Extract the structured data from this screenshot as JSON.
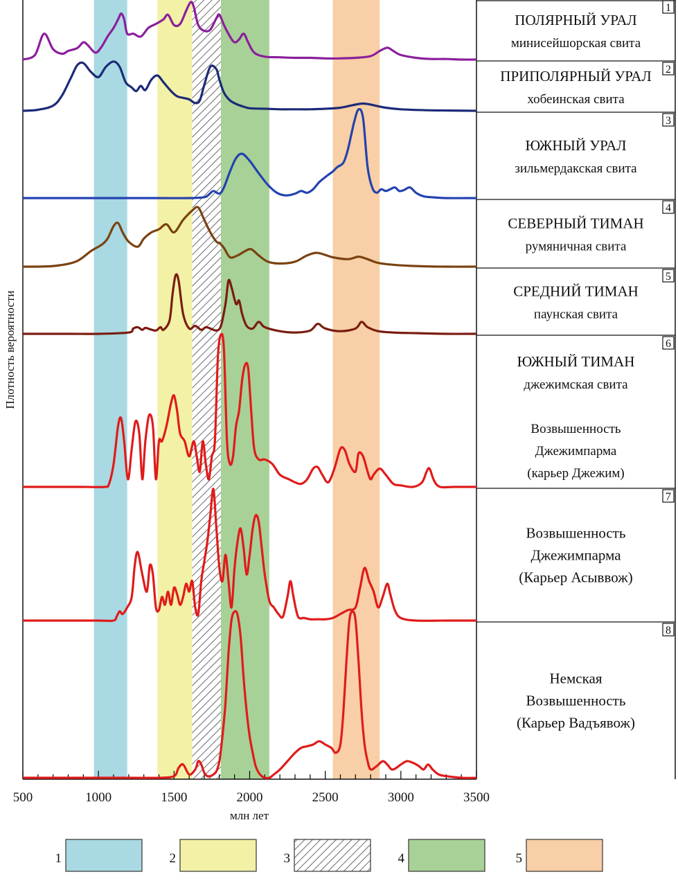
{
  "chart_data": {
    "type": "line",
    "title": "",
    "xlabel": "млн лет",
    "ylabel": "Плотность вероятности",
    "xlim": [
      500,
      3500
    ],
    "x_ticks": [
      500,
      1000,
      1500,
      2000,
      2500,
      3000,
      3500
    ],
    "bands": [
      {
        "id": "1",
        "from": 970,
        "to": 1190,
        "color": "#a9d9e2",
        "pattern": "solid"
      },
      {
        "id": "2",
        "from": 1390,
        "to": 1620,
        "color": "#f3f1a6",
        "pattern": "solid"
      },
      {
        "id": "3",
        "from": 1620,
        "to": 1810,
        "color": "#ffffff",
        "pattern": "hatched"
      },
      {
        "id": "4",
        "from": 1810,
        "to": 2130,
        "color": "#a8d197",
        "pattern": "solid"
      },
      {
        "id": "5",
        "from": 2550,
        "to": 2860,
        "color": "#f8cfa6",
        "pattern": "solid"
      }
    ],
    "legend": [
      {
        "label": "1",
        "color": "#a9d9e2",
        "pattern": "solid"
      },
      {
        "label": "2",
        "color": "#f3f1a6",
        "pattern": "solid"
      },
      {
        "label": "3",
        "color": "#ffffff",
        "pattern": "hatched"
      },
      {
        "label": "4",
        "color": "#a8d197",
        "pattern": "solid"
      },
      {
        "label": "5",
        "color": "#f8cfa6",
        "pattern": "solid"
      }
    ],
    "series": [
      {
        "num": "1",
        "title": "ПОЛЯРНЫЙ УРАЛ",
        "subtitle": [
          "минисейшорская свита"
        ],
        "color": "#8b1f9c",
        "x": [
          500,
          580,
          640,
          700,
          760,
          800,
          860,
          900,
          930,
          980,
          1020,
          1060,
          1100,
          1130,
          1150,
          1170,
          1190,
          1230,
          1280,
          1330,
          1380,
          1430,
          1460,
          1500,
          1540,
          1580,
          1610,
          1630,
          1660,
          1700,
          1740,
          1780,
          1800,
          1830,
          1870,
          1900,
          1930,
          1960,
          1990,
          2030,
          2100,
          2200,
          2300,
          2400,
          2500,
          2600,
          2700,
          2800,
          2860,
          2900,
          2920,
          2950,
          3000,
          3100,
          3200,
          3300,
          3400,
          3500
        ],
        "y": [
          0,
          0.08,
          0.45,
          0.18,
          0.1,
          0.15,
          0.2,
          0.3,
          0.25,
          0.12,
          0.22,
          0.4,
          0.55,
          0.7,
          0.8,
          0.7,
          0.45,
          0.45,
          0.4,
          0.55,
          0.62,
          0.7,
          0.78,
          0.6,
          0.62,
          0.85,
          1.0,
          0.92,
          0.6,
          0.5,
          0.52,
          0.72,
          0.78,
          0.6,
          0.4,
          0.3,
          0.35,
          0.45,
          0.3,
          0.12,
          0.05,
          0.04,
          0.03,
          0.03,
          0.02,
          0.02,
          0.03,
          0.06,
          0.15,
          0.2,
          0.2,
          0.15,
          0.08,
          0.03,
          0.01,
          0.01,
          0,
          0
        ]
      },
      {
        "num": "2",
        "title": "ПРИПОЛЯРНЫЙ УРАЛ",
        "subtitle": [
          "хобеинская свита"
        ],
        "color": "#1c2a78",
        "x": [
          500,
          600,
          700,
          760,
          820,
          860,
          900,
          950,
          1000,
          1050,
          1100,
          1140,
          1180,
          1220,
          1250,
          1280,
          1310,
          1350,
          1390,
          1430,
          1480,
          1520,
          1560,
          1600,
          1640,
          1670,
          1700,
          1740,
          1780,
          1800,
          1830,
          1870,
          1920,
          1960,
          2000,
          2100,
          2200,
          2300,
          2400,
          2500,
          2600,
          2700,
          2750,
          2800,
          2900,
          3000,
          3200,
          3500
        ],
        "y": [
          0,
          0.02,
          0.1,
          0.3,
          0.65,
          0.88,
          0.92,
          0.75,
          0.65,
          0.85,
          0.95,
          0.85,
          0.55,
          0.45,
          0.38,
          0.48,
          0.4,
          0.6,
          0.68,
          0.55,
          0.38,
          0.28,
          0.25,
          0.22,
          0.15,
          0.2,
          0.5,
          0.85,
          0.8,
          0.6,
          0.35,
          0.2,
          0.12,
          0.08,
          0.05,
          0.04,
          0.03,
          0.03,
          0.03,
          0.04,
          0.06,
          0.12,
          0.14,
          0.12,
          0.06,
          0.03,
          0.01,
          0
        ]
      },
      {
        "num": "3",
        "title": "ЮЖНЫЙ УРАЛ",
        "subtitle": [
          "зильмердакская свита"
        ],
        "color": "#2342b0",
        "x": [
          500,
          800,
          1000,
          1200,
          1400,
          1600,
          1700,
          1730,
          1760,
          1800,
          1830,
          1870,
          1910,
          1950,
          2000,
          2060,
          2120,
          2180,
          2240,
          2300,
          2340,
          2380,
          2420,
          2460,
          2510,
          2550,
          2580,
          2620,
          2650,
          2690,
          2720,
          2750,
          2780,
          2810,
          2840,
          2870,
          2900,
          2930,
          2960,
          2990,
          3020,
          3060,
          3100,
          3150,
          3200,
          3300,
          3500
        ],
        "y": [
          0,
          0,
          0,
          0,
          0,
          0,
          0.01,
          0.04,
          0.08,
          0.05,
          0.12,
          0.3,
          0.45,
          0.5,
          0.42,
          0.28,
          0.15,
          0.06,
          0.03,
          0.05,
          0.08,
          0.06,
          0.1,
          0.18,
          0.25,
          0.3,
          0.35,
          0.4,
          0.55,
          0.85,
          1.0,
          0.9,
          0.35,
          0.12,
          0.06,
          0.1,
          0.08,
          0.1,
          0.12,
          0.08,
          0.09,
          0.12,
          0.06,
          0.02,
          0.01,
          0,
          0
        ]
      },
      {
        "num": "4",
        "title": "СЕВЕРНЫЙ ТИМАН",
        "subtitle": [
          "румяничная свита"
        ],
        "color": "#7a4210",
        "x": [
          500,
          700,
          850,
          950,
          1020,
          1060,
          1100,
          1130,
          1160,
          1200,
          1260,
          1300,
          1350,
          1400,
          1450,
          1500,
          1560,
          1620,
          1660,
          1700,
          1740,
          1780,
          1800,
          1830,
          1870,
          1920,
          1970,
          2010,
          2060,
          2120,
          2200,
          2300,
          2380,
          2450,
          2550,
          2650,
          2720,
          2780,
          2850,
          2950,
          3100,
          3300,
          3500
        ],
        "y": [
          0,
          0.01,
          0.08,
          0.25,
          0.35,
          0.45,
          0.65,
          0.7,
          0.55,
          0.4,
          0.32,
          0.45,
          0.55,
          0.6,
          0.68,
          0.55,
          0.75,
          0.9,
          0.95,
          0.75,
          0.55,
          0.4,
          0.38,
          0.3,
          0.15,
          0.18,
          0.25,
          0.28,
          0.18,
          0.08,
          0.05,
          0.08,
          0.18,
          0.22,
          0.15,
          0.12,
          0.16,
          0.12,
          0.06,
          0.03,
          0.01,
          0,
          0
        ]
      },
      {
        "num": "5",
        "title": "СРЕДНИЙ ТИМАН",
        "subtitle": [
          "паунская свита"
        ],
        "color": "#7a1c10",
        "x": [
          500,
          800,
          1000,
          1200,
          1230,
          1260,
          1290,
          1310,
          1340,
          1380,
          1410,
          1430,
          1470,
          1490,
          1510,
          1530,
          1560,
          1600,
          1640,
          1680,
          1710,
          1740,
          1780,
          1810,
          1840,
          1860,
          1880,
          1910,
          1930,
          1950,
          1980,
          2020,
          2060,
          2100,
          2200,
          2300,
          2400,
          2450,
          2500,
          2600,
          2700,
          2740,
          2780,
          2850,
          2950,
          3100,
          3300,
          3500
        ],
        "y": [
          0,
          0,
          0,
          0.02,
          0.08,
          0.1,
          0.06,
          0.09,
          0.07,
          0.05,
          0.1,
          0.06,
          0.2,
          0.6,
          0.88,
          0.8,
          0.3,
          0.08,
          0.12,
          0.06,
          0.1,
          0.08,
          0.05,
          0.12,
          0.45,
          0.8,
          0.7,
          0.45,
          0.5,
          0.3,
          0.12,
          0.08,
          0.18,
          0.1,
          0.04,
          0.02,
          0.05,
          0.15,
          0.08,
          0.04,
          0.08,
          0.18,
          0.1,
          0.04,
          0.02,
          0.01,
          0,
          0
        ]
      },
      {
        "num": "6",
        "title": "ЮЖНЫЙ ТИМАН",
        "subtitle": [
          "джежимская свита",
          "",
          "Возвышенность",
          "Джежимпарма",
          "(карьер Джежим)"
        ],
        "color": "#e01b1b",
        "x": [
          500,
          700,
          900,
          1040,
          1070,
          1100,
          1130,
          1150,
          1170,
          1195,
          1220,
          1245,
          1270,
          1290,
          1310,
          1335,
          1360,
          1380,
          1400,
          1420,
          1450,
          1480,
          1500,
          1520,
          1540,
          1570,
          1600,
          1630,
          1650,
          1670,
          1690,
          1710,
          1730,
          1750,
          1770,
          1790,
          1810,
          1830,
          1850,
          1870,
          1890,
          1910,
          1930,
          1950,
          1970,
          1990,
          2010,
          2030,
          2060,
          2100,
          2150,
          2200,
          2260,
          2300,
          2340,
          2380,
          2420,
          2450,
          2480,
          2520,
          2560,
          2600,
          2630,
          2660,
          2700,
          2720,
          2750,
          2780,
          2800,
          2820,
          2860,
          2900,
          2950,
          3000,
          3080,
          3140,
          3170,
          3190,
          3220,
          3260,
          3350,
          3500
        ],
        "y": [
          0,
          0,
          0,
          0,
          0.02,
          0.15,
          0.4,
          0.45,
          0.3,
          0.05,
          0.25,
          0.43,
          0.35,
          0.05,
          0.3,
          0.47,
          0.4,
          0.05,
          0.3,
          0.3,
          0.4,
          0.55,
          0.6,
          0.5,
          0.35,
          0.3,
          0.2,
          0.3,
          0.2,
          0.1,
          0.3,
          0.15,
          0.05,
          0.2,
          0.3,
          0.85,
          1.0,
          0.9,
          0.3,
          0.15,
          0.2,
          0.4,
          0.5,
          0.7,
          0.8,
          0.78,
          0.5,
          0.25,
          0.18,
          0.18,
          0.15,
          0.08,
          0.05,
          0.03,
          0.02,
          0.05,
          0.12,
          0.13,
          0.08,
          0.03,
          0.12,
          0.25,
          0.24,
          0.15,
          0.1,
          0.22,
          0.2,
          0.1,
          0.05,
          0.08,
          0.12,
          0.08,
          0.02,
          0.01,
          0,
          0.03,
          0.1,
          0.12,
          0.04,
          0,
          0,
          0
        ]
      },
      {
        "num": "7",
        "title": "",
        "subtitle": [
          "Возвышенность",
          "Джежимпарма",
          "(Карьер Асыввож)"
        ],
        "color": "#e01b1b",
        "x": [
          500,
          800,
          1000,
          1100,
          1120,
          1140,
          1160,
          1190,
          1220,
          1240,
          1260,
          1290,
          1320,
          1340,
          1360,
          1380,
          1400,
          1420,
          1440,
          1460,
          1480,
          1500,
          1520,
          1540,
          1560,
          1580,
          1600,
          1620,
          1640,
          1660,
          1680,
          1700,
          1720,
          1740,
          1760,
          1780,
          1800,
          1820,
          1840,
          1860,
          1880,
          1900,
          1920,
          1940,
          1960,
          1980,
          2000,
          2020,
          2040,
          2060,
          2080,
          2100,
          2130,
          2160,
          2190,
          2220,
          2250,
          2270,
          2290,
          2320,
          2360,
          2400,
          2450,
          2500,
          2550,
          2600,
          2650,
          2700,
          2730,
          2760,
          2790,
          2820,
          2850,
          2880,
          2910,
          2930,
          2960,
          3000,
          3100,
          3300,
          3500
        ],
        "y": [
          0,
          0,
          0,
          0,
          0.03,
          0.07,
          0.05,
          0.1,
          0.18,
          0.42,
          0.52,
          0.35,
          0.22,
          0.42,
          0.35,
          0.1,
          0.08,
          0.18,
          0.12,
          0.22,
          0.12,
          0.25,
          0.2,
          0.12,
          0.18,
          0.28,
          0.22,
          0.3,
          0.1,
          0.05,
          0.3,
          0.45,
          0.6,
          0.8,
          1.0,
          0.7,
          0.4,
          0.3,
          0.5,
          0.3,
          0.1,
          0.4,
          0.6,
          0.7,
          0.55,
          0.35,
          0.5,
          0.7,
          0.8,
          0.75,
          0.55,
          0.35,
          0.15,
          0.1,
          0.05,
          0.03,
          0.18,
          0.3,
          0.18,
          0.03,
          0.02,
          0.01,
          0.01,
          0.01,
          0.02,
          0.05,
          0.08,
          0.1,
          0.25,
          0.4,
          0.3,
          0.22,
          0.1,
          0.18,
          0.28,
          0.2,
          0.08,
          0.02,
          0,
          0,
          0
        ]
      },
      {
        "num": "8",
        "title": "",
        "subtitle": [
          "Немская",
          "Возвышенность",
          "(Карьер Вадъявож)"
        ],
        "color": "#e01b1b",
        "x": [
          500,
          800,
          1000,
          1200,
          1400,
          1500,
          1530,
          1560,
          1600,
          1640,
          1660,
          1680,
          1700,
          1720,
          1740,
          1760,
          1780,
          1800,
          1820,
          1840,
          1860,
          1880,
          1900,
          1920,
          1940,
          1960,
          1980,
          2000,
          2020,
          2040,
          2060,
          2080,
          2100,
          2130,
          2160,
          2200,
          2250,
          2300,
          2340,
          2380,
          2420,
          2460,
          2500,
          2540,
          2570,
          2600,
          2620,
          2640,
          2660,
          2680,
          2700,
          2720,
          2740,
          2760,
          2780,
          2800,
          2840,
          2880,
          2910,
          2940,
          2970,
          3000,
          3040,
          3080,
          3120,
          3150,
          3180,
          3210,
          3250,
          3300,
          3400,
          3500
        ],
        "y": [
          0,
          0,
          0,
          0,
          0,
          0.01,
          0.06,
          0.08,
          0.02,
          0.05,
          0.1,
          0.08,
          0.03,
          0.01,
          0.01,
          0.02,
          0.04,
          0.1,
          0.25,
          0.45,
          0.75,
          0.95,
          1.0,
          0.98,
          0.85,
          0.6,
          0.4,
          0.25,
          0.15,
          0.07,
          0.03,
          0.01,
          0,
          0,
          0.02,
          0.05,
          0.1,
          0.15,
          0.18,
          0.19,
          0.2,
          0.22,
          0.2,
          0.18,
          0.15,
          0.2,
          0.4,
          0.7,
          0.95,
          1.0,
          0.95,
          0.7,
          0.4,
          0.2,
          0.1,
          0.05,
          0.07,
          0.1,
          0.08,
          0.05,
          0.06,
          0.08,
          0.1,
          0.09,
          0.07,
          0.05,
          0.08,
          0.05,
          0.02,
          0.01,
          0,
          0
        ]
      }
    ]
  }
}
